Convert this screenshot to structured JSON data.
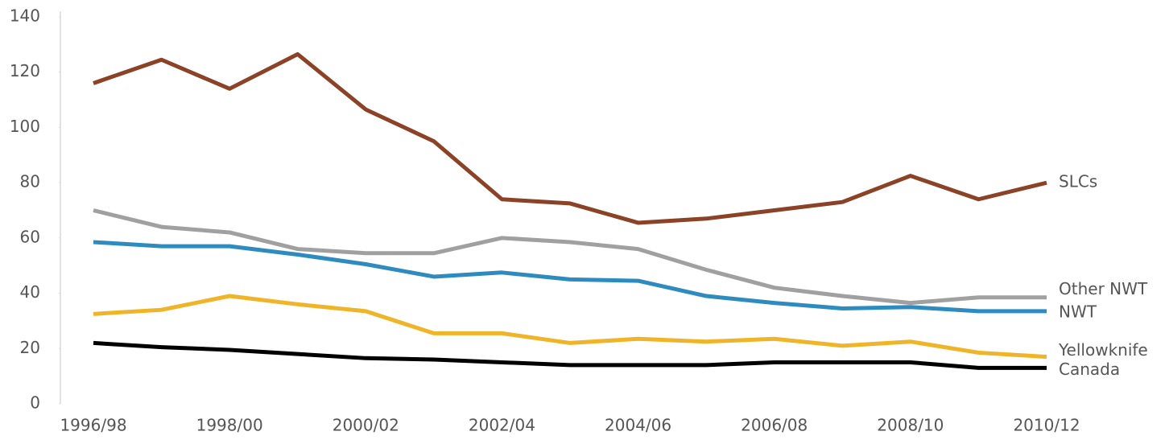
{
  "chart_data": {
    "type": "line",
    "categories": [
      "1996/98",
      null,
      "1998/00",
      null,
      "2000/02",
      null,
      "2002/04",
      null,
      "2004/06",
      null,
      "2006/08",
      null,
      "2008/10",
      null,
      "2010/12"
    ],
    "series": [
      {
        "name": "SLCs",
        "color": "#8b4226",
        "values": [
          116,
          124.5,
          114,
          126.5,
          106.5,
          95,
          74,
          72.5,
          65.5,
          67,
          70,
          73,
          82.5,
          74,
          80
        ]
      },
      {
        "name": "Other NWT",
        "color": "#a0a0a0",
        "values": [
          70,
          64,
          62,
          56,
          54.5,
          54.5,
          60,
          58.5,
          56,
          48.5,
          42,
          39,
          36.5,
          38.5,
          38.5
        ]
      },
      {
        "name": "NWT",
        "color": "#2e8bc0",
        "values": [
          58.5,
          57,
          57,
          54,
          50.5,
          46,
          47.5,
          45,
          44.5,
          39,
          36.5,
          34.5,
          35,
          33.5,
          33.5
        ]
      },
      {
        "name": "Yellowknife",
        "color": "#f0b429",
        "values": [
          32.5,
          34,
          39,
          36,
          33.5,
          25.5,
          25.5,
          22,
          23.5,
          22.5,
          23.5,
          21,
          22.5,
          18.5,
          17
        ]
      },
      {
        "name": "Canada",
        "color": "#000000",
        "values": [
          22,
          20.5,
          19.5,
          18,
          16.5,
          16,
          15,
          14,
          14,
          14,
          15,
          15,
          15,
          13,
          13
        ]
      }
    ],
    "ylim": [
      0,
      140
    ],
    "yticks": [
      0,
      20,
      40,
      60,
      80,
      100,
      120,
      140
    ]
  }
}
